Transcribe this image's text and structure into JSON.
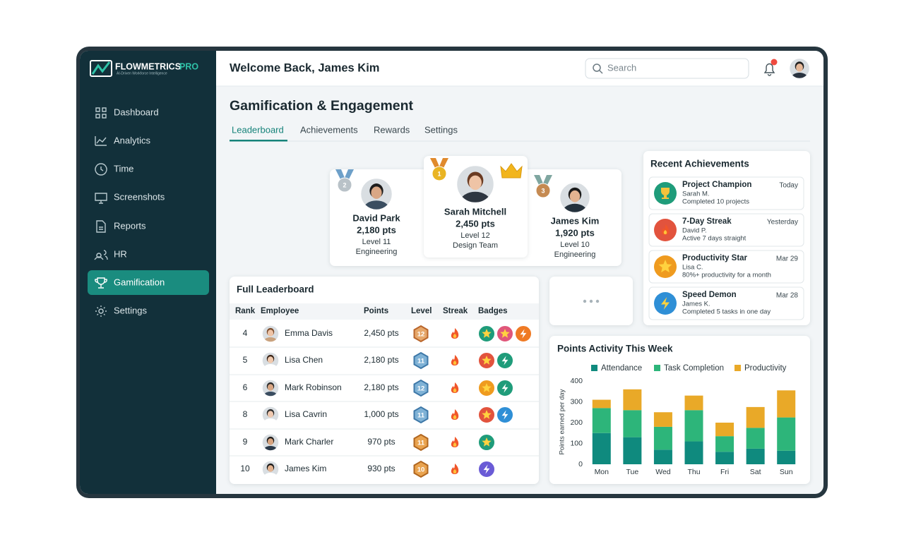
{
  "brand": {
    "name": "FLOWMETRICS",
    "tier": "PRO",
    "tagline": "AI-Driven Workforce Intelligence"
  },
  "nav": {
    "items": [
      "Dashboard",
      "Analytics",
      "Time",
      "Screenshots",
      "Reports",
      "HR",
      "Gamification",
      "Settings"
    ],
    "active": 6
  },
  "header": {
    "greeting": "Welcome Back, James Kim",
    "search_placeholder": "Search"
  },
  "page": {
    "title": "Gamification & Engagement",
    "tabs": [
      "Leaderboard",
      "Achievements",
      "Rewards",
      "Settings"
    ],
    "active_tab": 0
  },
  "podium": [
    {
      "rank": "2",
      "name": "David Park",
      "points": "2,180 pts",
      "level": "Level 11",
      "team": "Engineering"
    },
    {
      "rank": "1",
      "name": "Sarah Mitchell",
      "points": "2,450 pts",
      "level": "Level 12",
      "team": "Design Team"
    },
    {
      "rank": "3",
      "name": "James Kim",
      "points": "1,920 pts",
      "level": "Level 10",
      "team": "Engineering"
    }
  ],
  "leaderboard": {
    "title": "Full Leaderboard",
    "columns": [
      "Rank",
      "Employee",
      "Points",
      "Level",
      "Streak",
      "Badges"
    ],
    "rows": [
      {
        "rank": 4,
        "name": "Emma Davis",
        "points": "2,450 pts",
        "level": 12
      },
      {
        "rank": 5,
        "name": "Lisa Chen",
        "points": "2,180 pts",
        "level": 11
      },
      {
        "rank": 6,
        "name": "Mark Robinson",
        "points": "2,180 pts",
        "level": 12
      },
      {
        "rank": 8,
        "name": "Lisa Cavrin",
        "points": "1,000 pts",
        "level": 11
      },
      {
        "rank": 9,
        "name": "Mark Charler",
        "points": "970 pts",
        "level": 11
      },
      {
        "rank": 10,
        "name": "James Kim",
        "points": "930 pts",
        "level": 10
      }
    ]
  },
  "achievements": {
    "title": "Recent Achievements",
    "items": [
      {
        "title": "Project Champion",
        "date": "Today",
        "person": "Sarah M.",
        "detail": "Completed 10 projects"
      },
      {
        "title": "7-Day Streak",
        "date": "Yesterday",
        "person": "David P.",
        "detail": "Active 7 days straight"
      },
      {
        "title": "Productivity Star",
        "date": "Mar 29",
        "person": "Lisa C.",
        "detail": "80%+ productivity for a month"
      },
      {
        "title": "Speed Demon",
        "date": "Mar 28",
        "person": "James K.",
        "detail": "Completed 5 tasks in one day"
      }
    ]
  },
  "chart_data": {
    "type": "stacked_bar",
    "title": "Points Activity This Week",
    "y_label": "Points earned per day",
    "categories": [
      "Mon",
      "Tue",
      "Wed",
      "Thu",
      "Fri",
      "Sat",
      "Sun"
    ],
    "series": [
      {
        "name": "Attendance",
        "color": "#0f8a7e",
        "values": [
          150,
          130,
          70,
          110,
          60,
          75,
          65
        ]
      },
      {
        "name": "Task Completion",
        "color": "#2db57a",
        "values": [
          120,
          130,
          110,
          150,
          75,
          100,
          160
        ]
      },
      {
        "name": "Productivity",
        "color": "#e9a928",
        "values": [
          40,
          100,
          70,
          70,
          65,
          100,
          130
        ]
      }
    ],
    "ylim": [
      0,
      400
    ],
    "yticks": [
      0,
      100,
      200,
      300,
      400
    ],
    "grid": false,
    "legend": "top"
  }
}
